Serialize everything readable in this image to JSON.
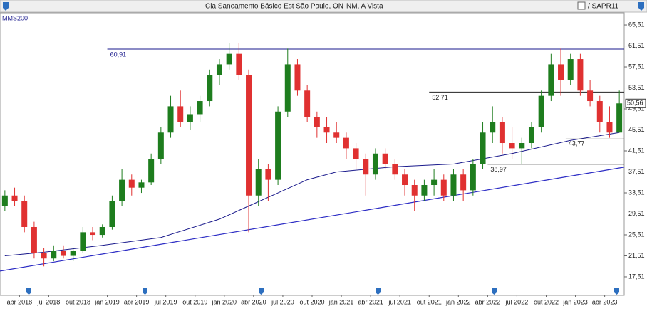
{
  "chart_data": {
    "type": "candlestick",
    "title": "Cia Saneamento Básico Est São Paulo, ON",
    "subtitle": "NM, A Vista",
    "ticker": "/ SAPR11",
    "indicator": "MMS200",
    "colors": {
      "up": "#1e7d1e",
      "down": "#e03131",
      "ma": "#1a1a8c",
      "trend": "#2b2bc4",
      "level": "#1a1a8c"
    },
    "xlim": [
      "2018-02",
      "2023-06"
    ],
    "ylim": [
      13.98,
      67.82
    ],
    "yticks": [
      {
        "value": 17.51,
        "label": "17,51"
      },
      {
        "value": 21.51,
        "label": "21,51"
      },
      {
        "value": 25.51,
        "label": "25,51"
      },
      {
        "value": 29.51,
        "label": "29,51"
      },
      {
        "value": 33.51,
        "label": "33,51"
      },
      {
        "value": 37.51,
        "label": "37,51"
      },
      {
        "value": 41.51,
        "label": "41,51"
      },
      {
        "value": 45.51,
        "label": "45,51"
      },
      {
        "value": 49.51,
        "label": "49,51"
      },
      {
        "value": 53.51,
        "label": "53,51"
      },
      {
        "value": 57.51,
        "label": "57,51"
      },
      {
        "value": 61.51,
        "label": "61,51"
      },
      {
        "value": 65.51,
        "label": "65,51"
      }
    ],
    "xticks": [
      {
        "value": "2018-04",
        "label": "abr 2018"
      },
      {
        "value": "2018-07",
        "label": "jul 2018"
      },
      {
        "value": "2018-10",
        "label": "out 2018"
      },
      {
        "value": "2019-01",
        "label": "jan 2019"
      },
      {
        "value": "2019-04",
        "label": "abr 2019"
      },
      {
        "value": "2019-07",
        "label": "jul 2019"
      },
      {
        "value": "2019-10",
        "label": "out 2019"
      },
      {
        "value": "2020-01",
        "label": "jan 2020"
      },
      {
        "value": "2020-04",
        "label": "abr 2020"
      },
      {
        "value": "2020-07",
        "label": "jul 2020"
      },
      {
        "value": "2020-10",
        "label": "out 2020"
      },
      {
        "value": "2021-01",
        "label": "jan 2021"
      },
      {
        "value": "2021-04",
        "label": "abr 2021"
      },
      {
        "value": "2021-07",
        "label": "jul 2021"
      },
      {
        "value": "2021-10",
        "label": "out 2021"
      },
      {
        "value": "2022-01",
        "label": "jan 2022"
      },
      {
        "value": "2022-04",
        "label": "abr 2022"
      },
      {
        "value": "2022-07",
        "label": "jul 2022"
      },
      {
        "value": "2022-10",
        "label": "out 2022"
      },
      {
        "value": "2023-01",
        "label": "jan 2023"
      },
      {
        "value": "2023-04",
        "label": "abr 2023"
      }
    ],
    "x": [
      "2018-02",
      "2018-03",
      "2018-04",
      "2018-05",
      "2018-06",
      "2018-07",
      "2018-08",
      "2018-09",
      "2018-10",
      "2018-11",
      "2018-12",
      "2019-01",
      "2019-02",
      "2019-03",
      "2019-04",
      "2019-05",
      "2019-06",
      "2019-07",
      "2019-08",
      "2019-09",
      "2019-10",
      "2019-11",
      "2019-12",
      "2020-01",
      "2020-02",
      "2020-03",
      "2020-04",
      "2020-05",
      "2020-06",
      "2020-07",
      "2020-08",
      "2020-09",
      "2020-10",
      "2020-11",
      "2020-12",
      "2021-01",
      "2021-02",
      "2021-03",
      "2021-04",
      "2021-05",
      "2021-06",
      "2021-07",
      "2021-08",
      "2021-09",
      "2021-10",
      "2021-11",
      "2021-12",
      "2022-01",
      "2022-02",
      "2022-03",
      "2022-04",
      "2022-05",
      "2022-06",
      "2022-07",
      "2022-08",
      "2022-09",
      "2022-10",
      "2022-11",
      "2022-12",
      "2023-01",
      "2023-02",
      "2023-03",
      "2023-04",
      "2023-05"
    ],
    "open": [
      31,
      33,
      32,
      27,
      22,
      21,
      22.5,
      21.5,
      22.5,
      26,
      25.5,
      27,
      32,
      36,
      34.5,
      35.5,
      40,
      45,
      50,
      47,
      48.5,
      51,
      56,
      58,
      60,
      56,
      33,
      38,
      36,
      49,
      58,
      53,
      48,
      46,
      45,
      44,
      42,
      40,
      37,
      41,
      39,
      37,
      35,
      33,
      35,
      36,
      33,
      37,
      34,
      39,
      45,
      47,
      43,
      42,
      43,
      46,
      52,
      58,
      55,
      59,
      53,
      51,
      47,
      45
    ],
    "high": [
      34,
      34.5,
      33,
      28,
      23,
      23.5,
      23.5,
      23,
      27,
      27,
      27.5,
      33,
      38,
      37,
      36,
      41,
      46,
      52,
      53,
      50,
      52,
      57,
      59,
      62,
      62,
      57,
      40,
      39,
      50,
      61,
      59,
      54,
      49,
      48,
      47,
      45,
      43,
      41,
      42,
      42,
      40,
      38,
      36,
      36,
      38,
      37,
      38,
      38,
      40,
      47,
      50,
      48,
      46,
      44,
      47,
      53,
      60,
      61,
      60,
      60,
      55,
      52,
      50,
      53
    ],
    "low": [
      30,
      31,
      26,
      21,
      19.5,
      20.5,
      21,
      20.5,
      22,
      24.5,
      25,
      26.5,
      31,
      33,
      33.5,
      35,
      39,
      44,
      46,
      45.5,
      47,
      50,
      54,
      57,
      55,
      26,
      31,
      32,
      35,
      48,
      52,
      47,
      44,
      43,
      43,
      40,
      38,
      33,
      36,
      38,
      36,
      33,
      30,
      32,
      33,
      32,
      32,
      32,
      33,
      38,
      43,
      41,
      40,
      39,
      42,
      45,
      51,
      52,
      54,
      52,
      50,
      45,
      44,
      45
    ],
    "close": [
      33,
      32,
      27,
      22,
      21,
      22.5,
      21.5,
      22.5,
      26,
      25.5,
      27,
      32,
      36,
      34.5,
      35.5,
      40,
      45,
      50,
      47,
      48.5,
      51,
      56,
      58,
      60,
      56,
      33,
      38,
      36,
      49,
      58,
      53,
      48,
      46,
      45,
      44,
      42,
      40,
      37,
      41,
      39,
      37,
      35,
      33,
      35,
      36,
      33,
      37,
      34,
      39,
      45,
      47,
      43,
      42,
      43,
      46,
      52,
      58,
      55,
      59,
      53,
      51,
      47,
      45,
      50.56
    ],
    "ma": {
      "x": [
        "2018-02",
        "2018-06",
        "2018-12",
        "2019-06",
        "2019-12",
        "2020-03",
        "2020-06",
        "2020-09",
        "2020-12",
        "2021-06",
        "2021-12",
        "2022-06",
        "2022-12",
        "2023-05"
      ],
      "values": [
        21.5,
        22.2,
        23.5,
        25,
        28.5,
        31,
        33.5,
        36,
        37.5,
        38.5,
        39,
        41,
        43.5,
        45
      ]
    },
    "trend": {
      "x": [
        "2018-02",
        "2023-06"
      ],
      "values": [
        18.6,
        38.4
      ]
    },
    "levels": [
      {
        "value": 60.91,
        "label": "60,91",
        "from": "2019-01"
      },
      {
        "value": 52.71,
        "label": "52,71",
        "from": "2021-10"
      },
      {
        "value": 43.77,
        "label": "43,77",
        "from": "2022-12"
      },
      {
        "value": 38.97,
        "label": "38,97",
        "from": "2022-04"
      }
    ],
    "last": {
      "value": 50.56,
      "label": "50,56"
    }
  }
}
